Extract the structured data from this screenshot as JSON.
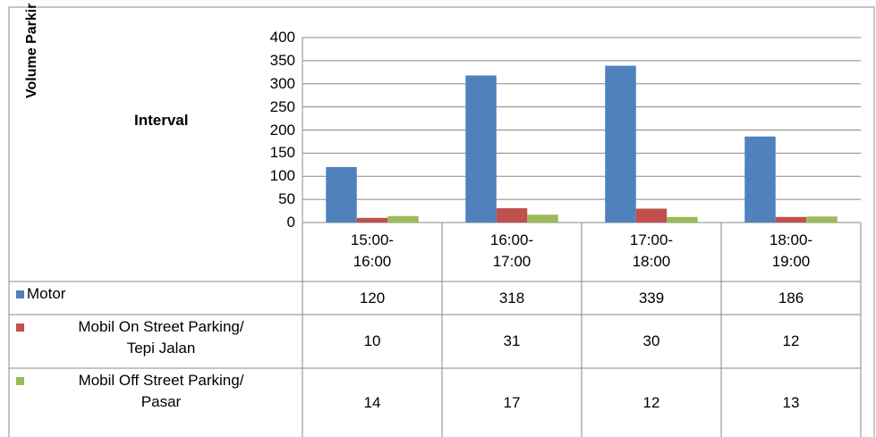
{
  "chart_data": {
    "type": "bar",
    "y_axis_label": "Volume Parkir",
    "x_axis_label": "Interval",
    "categories": [
      "15:00-\n16:00",
      "16:00-\n17:00",
      "17:00-\n18:00",
      "18:00-\n19:00"
    ],
    "series": [
      {
        "name": "Motor",
        "color": "#4f81bd",
        "values": [
          120,
          318,
          339,
          186
        ]
      },
      {
        "name": "Mobil On Street Parking/\nTepi Jalan",
        "color": "#c0504d",
        "values": [
          10,
          31,
          30,
          12
        ]
      },
      {
        "name": "Mobil Off Street Parking/\nPasar",
        "color": "#9bbb59",
        "values": [
          14,
          17,
          12,
          13
        ]
      }
    ],
    "ylim": [
      0,
      400
    ],
    "yticks": [
      0,
      50,
      100,
      150,
      200,
      250,
      300,
      350,
      400
    ],
    "grid": true
  }
}
